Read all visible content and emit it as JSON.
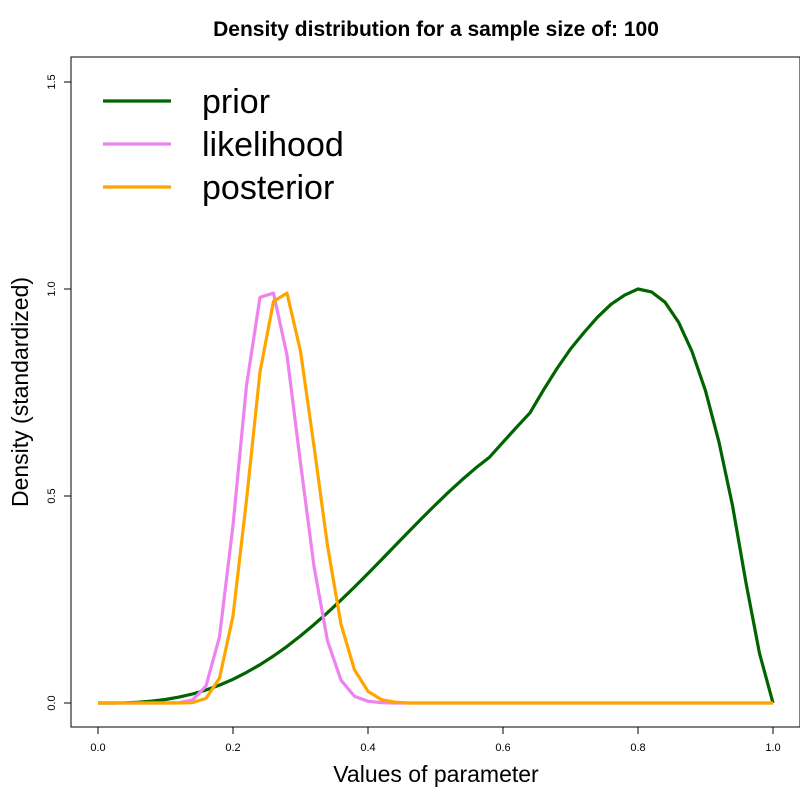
{
  "chart_data": {
    "type": "line",
    "title": "Density distribution for a sample size of: 100",
    "xlabel": "Values of parameter",
    "ylabel": "Density (standardized)",
    "xlim": [
      0,
      1
    ],
    "ylim": [
      0,
      1.5
    ],
    "x_ticks": [
      "0.0",
      "0.2",
      "0.4",
      "0.6",
      "0.8",
      "1.0"
    ],
    "y_ticks": [
      "0.0",
      "0.5",
      "1.0",
      "1.5"
    ],
    "grid": false,
    "legend_position": "top-left",
    "x": [
      0.0,
      0.02,
      0.04,
      0.06,
      0.08,
      0.1,
      0.12,
      0.14,
      0.16,
      0.18,
      0.2,
      0.22,
      0.24,
      0.26,
      0.28,
      0.3,
      0.32,
      0.34,
      0.36,
      0.38,
      0.4,
      0.42,
      0.44,
      0.46,
      0.48,
      0.5,
      0.52,
      0.54,
      0.56,
      0.58,
      0.6,
      0.62,
      0.64,
      0.66,
      0.68,
      0.7,
      0.72,
      0.74,
      0.76,
      0.78,
      0.8,
      0.82,
      0.84,
      0.86,
      0.88,
      0.9,
      0.92,
      0.94,
      0.96,
      0.98,
      1.0
    ],
    "series": [
      {
        "name": "prior",
        "color": "#006400",
        "values": [
          0.0,
          0.0001,
          0.0006,
          0.002,
          0.0045,
          0.0085,
          0.0142,
          0.0218,
          0.0314,
          0.0432,
          0.0573,
          0.0738,
          0.0925,
          0.1136,
          0.1368,
          0.1621,
          0.1893,
          0.2182,
          0.2486,
          0.2803,
          0.3129,
          0.3462,
          0.3798,
          0.4134,
          0.4466,
          0.4791,
          0.5104,
          0.5402,
          0.5681,
          0.5938,
          0.63,
          0.666,
          0.701,
          0.756,
          0.808,
          0.855,
          0.895,
          0.932,
          0.963,
          0.985,
          1.0,
          0.993,
          0.968,
          0.92,
          0.849,
          0.754,
          0.63,
          0.477,
          0.29,
          0.12,
          0.0
        ]
      },
      {
        "name": "likelihood",
        "color": "#EE82EE",
        "values": [
          0.0,
          0.0,
          0.0,
          0.0,
          0.0,
          0.0,
          0.001,
          0.007,
          0.041,
          0.16,
          0.429,
          0.767,
          0.98,
          0.99,
          0.84,
          0.58,
          0.33,
          0.15,
          0.055,
          0.016,
          0.004,
          0.001,
          0.0,
          0.0,
          0.0,
          0.0,
          0.0,
          0.0,
          0.0,
          0.0,
          0.0,
          0.0,
          0.0,
          0.0,
          0.0,
          0.0,
          0.0,
          0.0,
          0.0,
          0.0,
          0.0,
          0.0,
          0.0,
          0.0,
          0.0,
          0.0,
          0.0,
          0.0,
          0.0,
          0.0,
          0.0
        ]
      },
      {
        "name": "posterior",
        "color": "#FFA500",
        "values": [
          0.0,
          0.0,
          0.0,
          0.0,
          0.0,
          0.0,
          0.0,
          0.001,
          0.011,
          0.06,
          0.21,
          0.49,
          0.8,
          0.97,
          0.99,
          0.85,
          0.62,
          0.38,
          0.19,
          0.08,
          0.028,
          0.008,
          0.002,
          0.0,
          0.0,
          0.0,
          0.0,
          0.0,
          0.0,
          0.0,
          0.0,
          0.0,
          0.0,
          0.0,
          0.0,
          0.0,
          0.0,
          0.0,
          0.0,
          0.0,
          0.0,
          0.0,
          0.0,
          0.0,
          0.0,
          0.0,
          0.0,
          0.0,
          0.0,
          0.0,
          0.0
        ]
      }
    ]
  }
}
